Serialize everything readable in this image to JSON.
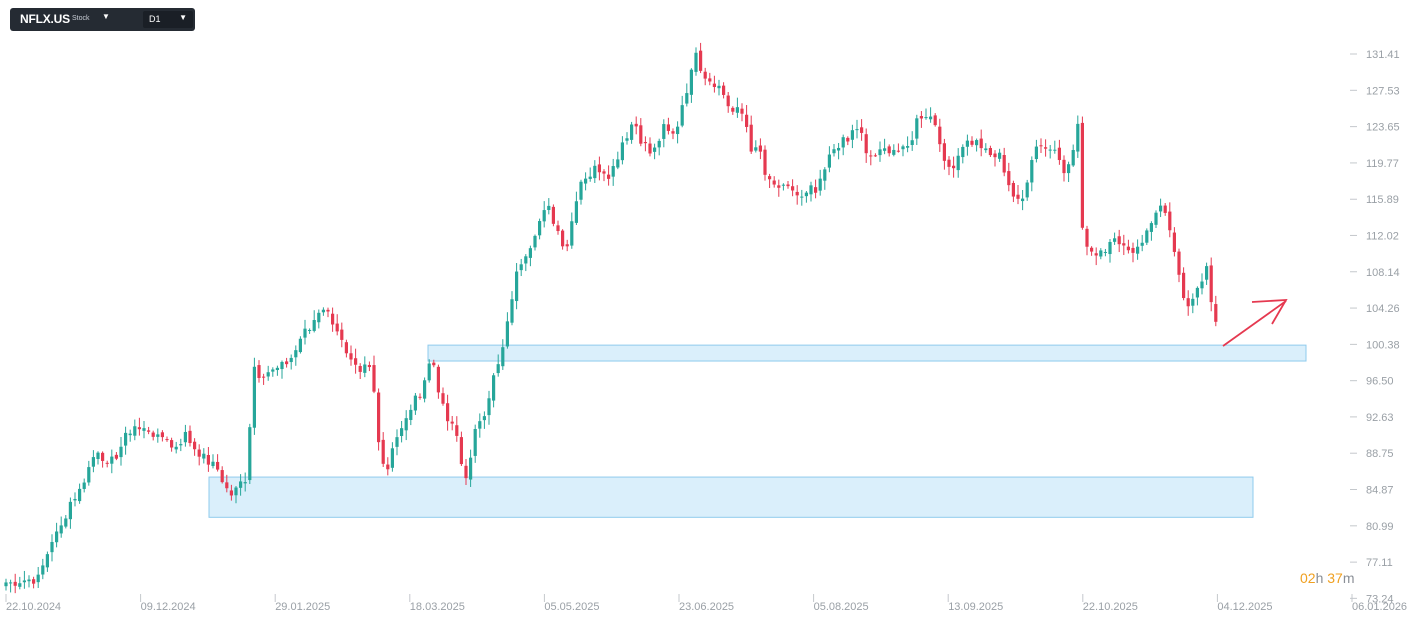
{
  "toolbar": {
    "symbol": "NFLX.US",
    "instrument_type": "Stock",
    "timeframe": "D1",
    "icons": {
      "symbol_dropdown": "caret-down-icon",
      "timeframe_dropdown": "caret-down-icon"
    }
  },
  "countdown": {
    "hours": "02",
    "hours_unit": "h",
    "minutes": "37",
    "minutes_unit": "m"
  },
  "colors": {
    "up": "#26a69a",
    "down": "#e53950",
    "zone_fill": "#d4ecfa",
    "zone_stroke": "#8fcbed",
    "arrow": "#e53950",
    "countdown": "#f0a020"
  },
  "chart_data": {
    "type": "candlestick",
    "title": "",
    "xlabel": "",
    "ylabel": "",
    "y_ticks": [
      "131.41",
      "127.53",
      "123.65",
      "119.77",
      "115.89",
      "112.02",
      "108.14",
      "104.26",
      "100.38",
      "96.50",
      "92.63",
      "88.75",
      "84.87",
      "80.99",
      "77.11",
      "73.24"
    ],
    "x_ticks": [
      "22.10.2024",
      "09.12.2024",
      "29.01.2025",
      "18.03.2025",
      "05.05.2025",
      "23.06.2025",
      "05.08.2025",
      "13.09.2025",
      "22.10.2025",
      "04.12.2025",
      "06.01.2026"
    ],
    "ylim": [
      73.24,
      131.41
    ],
    "price_path": [
      [
        0,
        75.4
      ],
      [
        8,
        74.8
      ],
      [
        22,
        75.2
      ],
      [
        38,
        75.3
      ],
      [
        44,
        77.0
      ],
      [
        52,
        79.5
      ],
      [
        60,
        80.5
      ],
      [
        70,
        83.5
      ],
      [
        80,
        84.8
      ],
      [
        86,
        86.5
      ],
      [
        94,
        88.5
      ],
      [
        100,
        89.5
      ],
      [
        106,
        87.0
      ],
      [
        116,
        88.5
      ],
      [
        126,
        90.5
      ],
      [
        134,
        91.8
      ],
      [
        140,
        91.2
      ],
      [
        150,
        91.3
      ],
      [
        158,
        90.2
      ],
      [
        166,
        90.8
      ],
      [
        172,
        89.2
      ],
      [
        180,
        90.0
      ],
      [
        186,
        90.8
      ],
      [
        192,
        89.6
      ],
      [
        198,
        89.0
      ],
      [
        204,
        88.2
      ],
      [
        212,
        87.5
      ],
      [
        218,
        87.0
      ],
      [
        224,
        85.5
      ],
      [
        230,
        84.2
      ],
      [
        236,
        84.8
      ],
      [
        242,
        85.8
      ],
      [
        248,
        86.3
      ],
      [
        252,
        98.6
      ],
      [
        258,
        97.2
      ],
      [
        266,
        97.5
      ],
      [
        274,
        97.5
      ],
      [
        282,
        98.0
      ],
      [
        290,
        98.8
      ],
      [
        296,
        99.8
      ],
      [
        302,
        101.5
      ],
      [
        310,
        102.0
      ],
      [
        316,
        103.5
      ],
      [
        322,
        104.6
      ],
      [
        330,
        103.3
      ],
      [
        336,
        102.4
      ],
      [
        342,
        100.5
      ],
      [
        348,
        98.5
      ],
      [
        354,
        98.0
      ],
      [
        360,
        97.0
      ],
      [
        366,
        98.2
      ],
      [
        372,
        97.5
      ],
      [
        378,
        90.8
      ],
      [
        382,
        88.5
      ],
      [
        386,
        86.2
      ],
      [
        392,
        89.5
      ],
      [
        398,
        90.8
      ],
      [
        404,
        91.5
      ],
      [
        410,
        93.5
      ],
      [
        416,
        94.5
      ],
      [
        422,
        95.7
      ],
      [
        428,
        98.0
      ],
      [
        432,
        98.8
      ],
      [
        436,
        97.5
      ],
      [
        440,
        94.5
      ],
      [
        446,
        92.5
      ],
      [
        450,
        91.8
      ],
      [
        456,
        91.0
      ],
      [
        460,
        88.5
      ],
      [
        464,
        86.0
      ],
      [
        470,
        87.5
      ],
      [
        474,
        90.5
      ],
      [
        480,
        92.5
      ],
      [
        486,
        93.5
      ],
      [
        490,
        95.5
      ],
      [
        494,
        97.0
      ],
      [
        500,
        98.5
      ],
      [
        506,
        101.5
      ],
      [
        512,
        105.5
      ],
      [
        518,
        108.5
      ],
      [
        524,
        110.0
      ],
      [
        530,
        111.0
      ],
      [
        536,
        112.8
      ],
      [
        542,
        114.0
      ],
      [
        548,
        115.0
      ],
      [
        554,
        113.5
      ],
      [
        560,
        112.0
      ],
      [
        566,
        110.5
      ],
      [
        570,
        112.5
      ],
      [
        576,
        116.0
      ],
      [
        582,
        118.3
      ],
      [
        590,
        118.5
      ],
      [
        596,
        119.3
      ],
      [
        604,
        119.0
      ],
      [
        610,
        118.5
      ],
      [
        616,
        120.0
      ],
      [
        622,
        122.0
      ],
      [
        628,
        123.0
      ],
      [
        634,
        124.5
      ],
      [
        640,
        122.5
      ],
      [
        646,
        121.5
      ],
      [
        652,
        120.5
      ],
      [
        658,
        122.0
      ],
      [
        664,
        123.5
      ],
      [
        672,
        122.5
      ],
      [
        678,
        124.0
      ],
      [
        684,
        127.0
      ],
      [
        690,
        128.5
      ],
      [
        696,
        132.0
      ],
      [
        702,
        129.5
      ],
      [
        708,
        128.8
      ],
      [
        716,
        128.3
      ],
      [
        722,
        127.5
      ],
      [
        728,
        126.0
      ],
      [
        734,
        125.0
      ],
      [
        740,
        125.5
      ],
      [
        746,
        124.0
      ],
      [
        752,
        121.0
      ],
      [
        760,
        121.0
      ],
      [
        766,
        118.0
      ],
      [
        772,
        117.3
      ],
      [
        778,
        117.2
      ],
      [
        786,
        116.8
      ],
      [
        792,
        117.0
      ],
      [
        798,
        116.2
      ],
      [
        804,
        115.8
      ],
      [
        810,
        117.0
      ],
      [
        816,
        116.5
      ],
      [
        822,
        118.0
      ],
      [
        828,
        120.0
      ],
      [
        834,
        121.3
      ],
      [
        840,
        122.0
      ],
      [
        848,
        122.0
      ],
      [
        854,
        123.5
      ],
      [
        860,
        123.5
      ],
      [
        866,
        120.5
      ],
      [
        872,
        120.5
      ],
      [
        880,
        120.8
      ],
      [
        888,
        121.3
      ],
      [
        894,
        121.3
      ],
      [
        900,
        121.0
      ],
      [
        906,
        121.0
      ],
      [
        912,
        122.5
      ],
      [
        918,
        124.8
      ],
      [
        926,
        125.0
      ],
      [
        932,
        124.6
      ],
      [
        938,
        123.5
      ],
      [
        944,
        119.5
      ],
      [
        950,
        119.3
      ],
      [
        956,
        120.0
      ],
      [
        962,
        121.8
      ],
      [
        968,
        122.0
      ],
      [
        976,
        122.0
      ],
      [
        982,
        121.5
      ],
      [
        988,
        120.5
      ],
      [
        994,
        120.5
      ],
      [
        1000,
        120.5
      ],
      [
        1006,
        118.5
      ],
      [
        1012,
        116.5
      ],
      [
        1018,
        115.5
      ],
      [
        1024,
        116.0
      ],
      [
        1030,
        120.0
      ],
      [
        1036,
        121.5
      ],
      [
        1042,
        122.0
      ],
      [
        1048,
        121.0
      ],
      [
        1054,
        121.5
      ],
      [
        1060,
        120.5
      ],
      [
        1066,
        118.5
      ],
      [
        1072,
        120.5
      ],
      [
        1078,
        124.0
      ],
      [
        1082,
        112.5
      ],
      [
        1088,
        111.0
      ],
      [
        1094,
        110.0
      ],
      [
        1100,
        110.5
      ],
      [
        1106,
        110.8
      ],
      [
        1112,
        112.2
      ],
      [
        1118,
        110.5
      ],
      [
        1124,
        111.5
      ],
      [
        1130,
        110.0
      ],
      [
        1136,
        110.8
      ],
      [
        1142,
        111.5
      ],
      [
        1148,
        112.5
      ],
      [
        1154,
        114.0
      ],
      [
        1158,
        115.5
      ],
      [
        1164,
        114.5
      ],
      [
        1170,
        112.0
      ],
      [
        1176,
        109.8
      ],
      [
        1180,
        106.5
      ],
      [
        1186,
        104.0
      ],
      [
        1190,
        105.0
      ],
      [
        1196,
        106.5
      ],
      [
        1202,
        107.5
      ],
      [
        1208,
        108.8
      ],
      [
        1212,
        103.8
      ],
      [
        1216,
        102.2
      ]
    ],
    "zones": [
      {
        "x_start": 428,
        "x_end": 1306,
        "y_low": 98.6,
        "y_high": 100.3
      },
      {
        "x_start": 209,
        "x_end": 1253,
        "y_low": 81.9,
        "y_high": 86.2
      }
    ]
  }
}
